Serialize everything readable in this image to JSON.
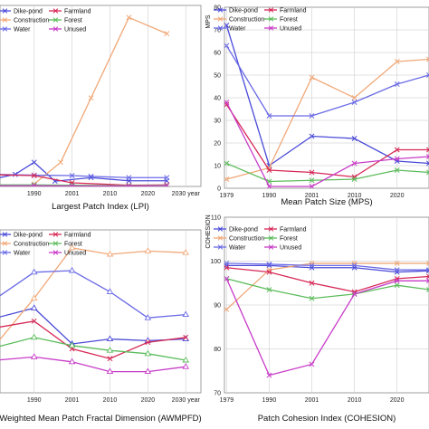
{
  "colors": {
    "Dike-pond": "#4a4ad8",
    "Construction": "#f0a878",
    "Water": "#6a6ae6",
    "Farmland": "#d62856",
    "Forest": "#5cbc5c",
    "Unused": "#c83cc8"
  },
  "chart_data": [
    {
      "type": "line",
      "title": "Largest Patch Index (LPI)",
      "ylabel": "",
      "x": [
        "1990",
        "2001",
        "2010",
        "2020",
        "2030 year"
      ],
      "xticks": [
        "1990",
        "2001",
        "2010",
        "2020",
        "2030 year"
      ],
      "xdomain": [
        -0.9,
        4.4
      ],
      "ylim": [
        0,
        45
      ],
      "yticks": [],
      "legend": [
        "Dike-pond",
        "Farmland",
        "Construction",
        "Forest",
        "Water",
        "Unused"
      ],
      "series": [
        {
          "name": "Dike-pond",
          "marker": "x",
          "values": [
            [
              -1,
              2
            ],
            [
              -0.5,
              3
            ],
            [
              0,
              6
            ],
            [
              0.55,
              1.3
            ],
            [
              1.5,
              2.2
            ],
            [
              2.5,
              1.4
            ],
            [
              3.5,
              1.4
            ]
          ]
        },
        {
          "name": "Construction",
          "marker": "x",
          "values": [
            [
              0,
              0.6
            ],
            [
              0.7,
              6
            ],
            [
              1.5,
              22
            ],
            [
              2.5,
              42
            ],
            [
              3.5,
              38
            ]
          ]
        },
        {
          "name": "Water",
          "marker": "x",
          "values": [
            [
              -1,
              3
            ],
            [
              0,
              2.8
            ],
            [
              1,
              2.7
            ],
            [
              1.5,
              2.5
            ],
            [
              2.5,
              2.2
            ],
            [
              3.5,
              2.2
            ]
          ]
        },
        {
          "name": "Farmland",
          "marker": "x",
          "values": [
            [
              -1,
              2.9
            ],
            [
              0,
              2.7
            ],
            [
              1,
              0.9
            ],
            [
              2.5,
              0.3
            ],
            [
              3.5,
              0.4
            ]
          ]
        },
        {
          "name": "Forest",
          "marker": "x",
          "values": [
            [
              -1,
              0.4
            ],
            [
              0,
              0.4
            ],
            [
              1,
              0.3
            ],
            [
              2.5,
              0.2
            ],
            [
              3.5,
              0.3
            ]
          ]
        },
        {
          "name": "Unused",
          "marker": "x",
          "values": [
            [
              -1,
              0.2
            ],
            [
              0,
              0.2
            ],
            [
              1,
              0.1
            ],
            [
              2.5,
              0.1
            ],
            [
              3.5,
              0.2
            ]
          ]
        }
      ]
    },
    {
      "type": "line",
      "title": "Mean Patch Size  (MPS)",
      "ylabel": "MPS",
      "x": [
        "1979",
        "1990",
        "2001",
        "2010",
        "2020"
      ],
      "xticks": [
        "1979",
        "1990",
        "2001",
        "2010",
        "2020"
      ],
      "xdomain": [
        -0.05,
        4.75
      ],
      "ylim": [
        0,
        80
      ],
      "yticks": [
        0,
        10,
        20,
        30,
        40,
        50,
        60,
        70,
        80
      ],
      "legend": [
        "Dike-pond",
        "Farmland",
        "Construction",
        "Forest",
        "Water",
        "Unused"
      ],
      "series": [
        {
          "name": "Dike-pond",
          "marker": "x",
          "values": [
            [
              0,
              72
            ],
            [
              1,
              10
            ],
            [
              2,
              23
            ],
            [
              3,
              22
            ],
            [
              4,
              12
            ],
            [
              4.75,
              11
            ]
          ]
        },
        {
          "name": "Construction",
          "marker": "x",
          "values": [
            [
              0,
              4
            ],
            [
              1,
              9
            ],
            [
              2,
              49
            ],
            [
              3,
              40
            ],
            [
              4,
              56
            ],
            [
              4.75,
              57
            ]
          ]
        },
        {
          "name": "Water",
          "marker": "x",
          "values": [
            [
              0,
              63
            ],
            [
              1,
              32
            ],
            [
              2,
              32
            ],
            [
              3,
              38
            ],
            [
              4,
              46
            ],
            [
              4.75,
              50
            ]
          ]
        },
        {
          "name": "Farmland",
          "marker": "x",
          "values": [
            [
              0,
              37
            ],
            [
              1,
              8
            ],
            [
              2,
              7
            ],
            [
              3,
              5
            ],
            [
              4,
              17
            ],
            [
              4.75,
              17
            ]
          ]
        },
        {
          "name": "Forest",
          "marker": "x",
          "values": [
            [
              0,
              11
            ],
            [
              1,
              3
            ],
            [
              2,
              3.5
            ],
            [
              3,
              4
            ],
            [
              4,
              8
            ],
            [
              4.75,
              7
            ]
          ]
        },
        {
          "name": "Unused",
          "marker": "x",
          "values": [
            [
              0,
              38
            ],
            [
              1,
              0.8
            ],
            [
              2,
              0.8
            ],
            [
              3,
              11
            ],
            [
              4,
              13
            ],
            [
              4.75,
              14
            ]
          ]
        }
      ]
    },
    {
      "type": "line",
      "title": "Weighted Mean Patch Fractal Dimension  (AWMPFD)",
      "ylabel": "",
      "x": [
        "1990",
        "2001",
        "2010",
        "2020",
        "2030 year"
      ],
      "xticks": [
        "1990",
        "2001",
        "2010",
        "2020",
        "2030 year"
      ],
      "xdomain": [
        -0.9,
        4.4
      ],
      "ylim": [
        0,
        100
      ],
      "yticks": [],
      "legend": [
        "Dike-pond",
        "Farmland",
        "Construction",
        "Forest",
        "Water",
        "Unused"
      ],
      "series": [
        {
          "name": "Dike-pond",
          "marker": "triangle",
          "values": [
            [
              -1,
              46
            ],
            [
              0,
              52
            ],
            [
              1,
              30
            ],
            [
              2,
              33
            ],
            [
              3,
              32
            ],
            [
              4,
              33
            ]
          ]
        },
        {
          "name": "Construction",
          "marker": "triangle",
          "values": [
            [
              -1,
              30
            ],
            [
              0,
              58
            ],
            [
              1,
              89
            ],
            [
              2,
              85
            ],
            [
              3,
              87
            ],
            [
              4,
              86
            ]
          ]
        },
        {
          "name": "Water",
          "marker": "triangle",
          "values": [
            [
              -1,
              58
            ],
            [
              0,
              74
            ],
            [
              1,
              75
            ],
            [
              2,
              62
            ],
            [
              3,
              46
            ],
            [
              4,
              48
            ]
          ]
        },
        {
          "name": "Farmland",
          "marker": "x",
          "values": [
            [
              -1,
              40
            ],
            [
              0,
              44
            ],
            [
              1,
              27
            ],
            [
              2,
              21
            ],
            [
              3,
              31
            ],
            [
              4,
              34
            ]
          ]
        },
        {
          "name": "Forest",
          "marker": "triangle",
          "values": [
            [
              -1,
              28
            ],
            [
              0,
              34
            ],
            [
              1,
              29
            ],
            [
              2,
              26
            ],
            [
              3,
              24
            ],
            [
              4,
              20
            ]
          ]
        },
        {
          "name": "Unused",
          "marker": "triangle",
          "values": [
            [
              -1,
              20
            ],
            [
              0,
              22
            ],
            [
              1,
              19
            ],
            [
              2,
              13
            ],
            [
              3,
              13
            ],
            [
              4,
              16
            ]
          ]
        }
      ]
    },
    {
      "type": "line",
      "title": "Patch Cohesion Index  (COHESION)",
      "ylabel": "COHESION",
      "x": [
        "1979",
        "1990",
        "2001",
        "2010",
        "2020"
      ],
      "xticks": [
        "1979",
        "1990",
        "2001",
        "2010",
        "2020"
      ],
      "xdomain": [
        -0.05,
        4.75
      ],
      "ylim": [
        70,
        110
      ],
      "yticks": [
        70,
        80,
        90,
        100,
        110
      ],
      "legend": [
        "Dike-pond",
        "Farmland",
        "Construction",
        "Forest",
        "Water",
        "Unused"
      ],
      "series": [
        {
          "name": "Dike-pond",
          "marker": "x",
          "values": [
            [
              0,
              99
            ],
            [
              1,
              99
            ],
            [
              2,
              98.5
            ],
            [
              3,
              98.5
            ],
            [
              4,
              97.5
            ],
            [
              4.75,
              97.8
            ]
          ]
        },
        {
          "name": "Construction",
          "marker": "x",
          "values": [
            [
              0,
              89
            ],
            [
              1,
              98
            ],
            [
              2,
              99.5
            ],
            [
              3,
              99.5
            ],
            [
              4,
              99.5
            ],
            [
              4.75,
              99.5
            ]
          ]
        },
        {
          "name": "Water",
          "marker": "x",
          "values": [
            [
              0,
              99.5
            ],
            [
              1,
              99.3
            ],
            [
              2,
              99
            ],
            [
              3,
              99
            ],
            [
              4,
              98
            ],
            [
              4.75,
              98
            ]
          ]
        },
        {
          "name": "Farmland",
          "marker": "x",
          "values": [
            [
              0,
              98.5
            ],
            [
              1,
              97.5
            ],
            [
              2,
              95
            ],
            [
              3,
              93
            ],
            [
              4,
              96
            ],
            [
              4.75,
              96.5
            ]
          ]
        },
        {
          "name": "Forest",
          "marker": "x",
          "values": [
            [
              0,
              96
            ],
            [
              1,
              93.5
            ],
            [
              2,
              91.5
            ],
            [
              3,
              92.5
            ],
            [
              4,
              94.5
            ],
            [
              4.75,
              93.5
            ]
          ]
        },
        {
          "name": "Unused",
          "marker": "x",
          "values": [
            [
              0,
              96
            ],
            [
              1,
              74
            ],
            [
              2,
              76.5
            ],
            [
              3,
              92.5
            ],
            [
              4,
              95.5
            ],
            [
              4.75,
              95.5
            ]
          ]
        }
      ]
    }
  ]
}
